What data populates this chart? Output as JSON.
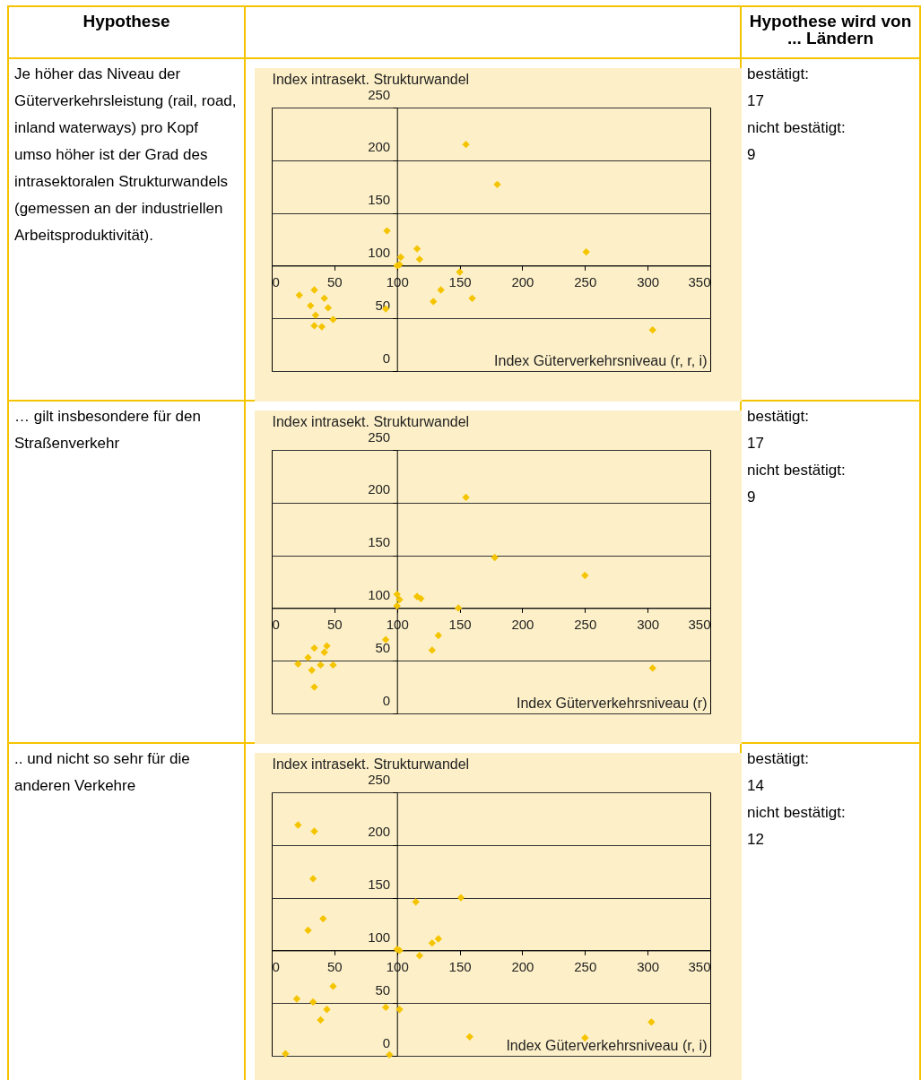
{
  "chart_data": [
    {
      "type": "other",
      "annotations": [
        "Hypothese",
        "Hypothese wird von ... Ländern"
      ]
    },
    {
      "type": "other",
      "annotations": [
        "Je höher das Niveau der Güterverkehrsleistung (rail, road, inland waterways) pro Kopf umso höher ist der Grad des intrasektoralen Strukturwandels (gemessen an der industriellen Arbeitsproduktivität)."
      ]
    },
    {
      "type": "scatter",
      "ylabel": "Index intrasekt. Strukturwandel",
      "xlabel": "Index Güterverkehrsniveau (r, r, i)",
      "color": "#f5c400",
      "marker": "diamond",
      "grid": "y",
      "xlim": [
        0,
        350
      ],
      "xticks": [
        0,
        50,
        100,
        150,
        200,
        250,
        300,
        350
      ],
      "ylim": [
        0,
        250
      ],
      "yticks": [
        0,
        50,
        100,
        150,
        200,
        250
      ],
      "x": [
        155,
        180,
        251,
        92,
        116,
        118,
        103,
        100,
        102,
        150,
        135,
        129,
        160,
        91,
        304,
        22,
        34,
        31,
        35,
        42,
        45,
        49,
        34,
        40
      ],
      "values": [
        215,
        177,
        113,
        133,
        116,
        106,
        108,
        100,
        101,
        94,
        77,
        66,
        69,
        59,
        39,
        72,
        77,
        62,
        53,
        69,
        60,
        49,
        43,
        42
      ]
    },
    {
      "type": "other",
      "annotations": [
        "bestätigt:",
        "17",
        "nicht bestätigt:",
        "9"
      ]
    },
    {
      "type": "other",
      "annotations": [
        "… gilt insbesondere für den Straßenverkehr"
      ]
    },
    {
      "type": "scatter",
      "ylabel": "Index intrasekt. Strukturwandel",
      "xlabel": "Index Güterverkehrsniveau (r)",
      "color": "#f5c400",
      "marker": "diamond",
      "grid": "y",
      "xlim": [
        0,
        350
      ],
      "xticks": [
        0,
        50,
        100,
        150,
        200,
        250,
        300,
        350
      ],
      "ylim": [
        0,
        250
      ],
      "yticks": [
        0,
        50,
        100,
        150,
        200,
        250
      ],
      "x": [
        155,
        178,
        250,
        100,
        102,
        100,
        116,
        119,
        149,
        133,
        128,
        91,
        304,
        21,
        29,
        34,
        32,
        34,
        39,
        42,
        44,
        49
      ],
      "values": [
        205,
        148,
        131,
        113,
        108,
        102,
        111,
        109,
        100,
        74,
        60,
        70,
        43,
        47,
        53,
        62,
        41,
        25,
        46,
        58,
        64,
        46
      ]
    },
    {
      "type": "other",
      "annotations": [
        "bestätigt:",
        "17",
        "nicht bestätigt:",
        "9"
      ]
    },
    {
      "type": "other",
      "annotations": [
        ".. und nicht so sehr für die anderen Verkehre"
      ]
    },
    {
      "type": "scatter",
      "ylabel": "Index intrasekt. Strukturwandel",
      "xlabel": "Index Güterverkehrsniveau (r, i)",
      "color": "#f5c400",
      "marker": "diamond",
      "grid": "y",
      "xlim": [
        0,
        350
      ],
      "xticks": [
        0,
        50,
        100,
        150,
        200,
        250,
        300,
        350
      ],
      "ylim": [
        0,
        250
      ],
      "yticks": [
        0,
        50,
        100,
        150,
        200,
        250
      ],
      "x": [
        21,
        34,
        33,
        41,
        29,
        115,
        151,
        133,
        128,
        100,
        102,
        118,
        49,
        20,
        33,
        44,
        39,
        91,
        102,
        11,
        94,
        158,
        250,
        303
      ],
      "values": [
        219,
        213,
        168,
        130,
        119,
        146,
        150,
        111,
        107,
        101,
        100,
        95,
        66,
        54,
        51,
        44,
        34,
        46,
        44,
        2,
        1,
        18,
        17,
        32
      ]
    },
    {
      "type": "other",
      "annotations": [
        "bestätigt:",
        "14",
        "nicht bestätigt:",
        "12"
      ]
    }
  ]
}
